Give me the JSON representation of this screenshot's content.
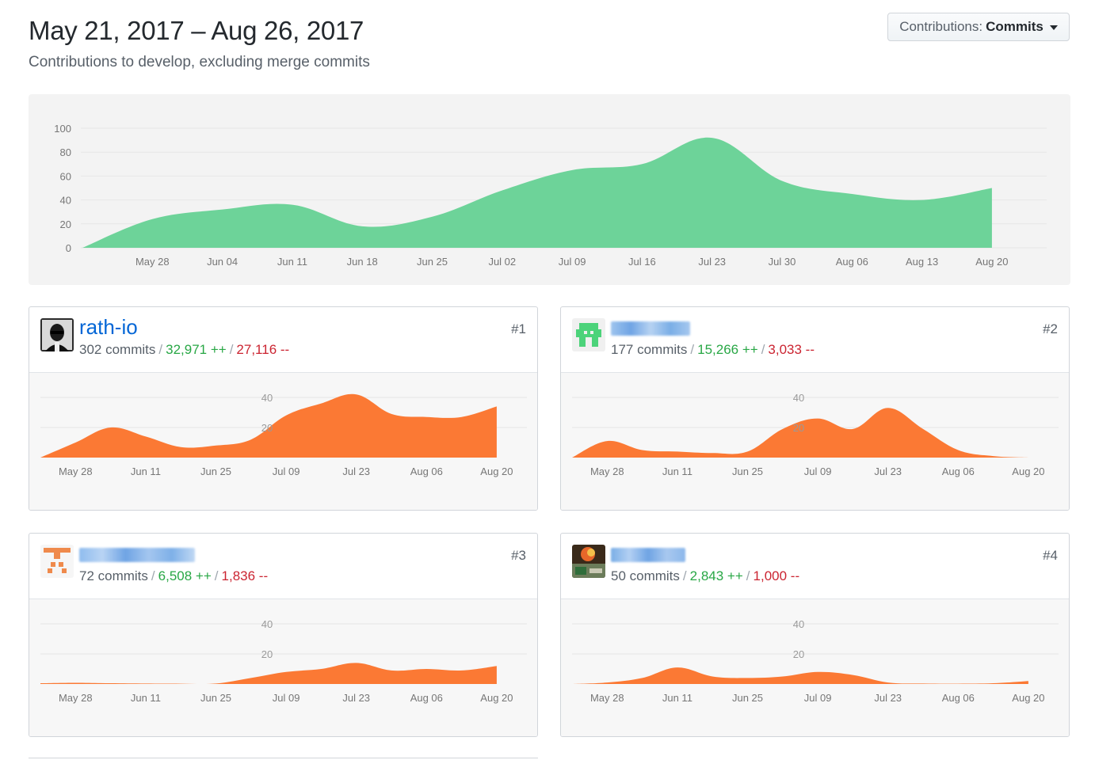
{
  "header": {
    "title": "May 21, 2017 – Aug 26, 2017",
    "subtitle": "Contributions to develop, excluding merge commits"
  },
  "dropdown": {
    "label": "Contributions:",
    "value": "Commits"
  },
  "colors": {
    "main_area": "#6dd399",
    "contributor_area": "#fb7934",
    "link": "#0366d6",
    "additions": "#28a745",
    "deletions": "#cb2431"
  },
  "chart_data": [
    {
      "type": "area",
      "name": "main",
      "yticks": [
        0,
        20,
        40,
        60,
        80,
        100
      ],
      "ylim": [
        0,
        100
      ],
      "x": [
        "May 21",
        "May 28",
        "Jun 04",
        "Jun 11",
        "Jun 18",
        "Jun 25",
        "Jul 02",
        "Jul 09",
        "Jul 16",
        "Jul 23",
        "Jul 30",
        "Aug 06",
        "Aug 13",
        "Aug 20"
      ],
      "xtick_labels": [
        "May 28",
        "Jun 04",
        "Jun 11",
        "Jun 18",
        "Jun 25",
        "Jul 02",
        "Jul 09",
        "Jul 16",
        "Jul 23",
        "Jul 30",
        "Aug 06",
        "Aug 13",
        "Aug 20"
      ],
      "values": [
        0,
        24,
        32,
        36,
        18,
        26,
        48,
        65,
        70,
        92,
        56,
        45,
        40,
        50
      ],
      "grid": true
    }
  ],
  "contributors": [
    {
      "rank": "#1",
      "name": "rath-io",
      "name_visible": true,
      "commits": "302 commits",
      "additions": "32,971 ++",
      "deletions": "27,116 --",
      "chart_data": {
        "type": "area",
        "ylim": [
          0,
          50
        ],
        "yticks": [
          20,
          40
        ],
        "xtick_labels": [
          "May 28",
          "Jun 11",
          "Jun 25",
          "Jul 09",
          "Jul 23",
          "Aug 06",
          "Aug 20"
        ],
        "x": [
          "May 21",
          "May 28",
          "Jun 04",
          "Jun 11",
          "Jun 18",
          "Jun 25",
          "Jul 02",
          "Jul 09",
          "Jul 16",
          "Jul 23",
          "Jul 30",
          "Aug 06",
          "Aug 13",
          "Aug 20"
        ],
        "values": [
          0,
          10,
          20,
          14,
          7,
          8,
          12,
          28,
          36,
          42,
          29,
          27,
          27,
          34
        ]
      }
    },
    {
      "rank": "#2",
      "name": "",
      "name_visible": false,
      "commits": "177 commits",
      "additions": "15,266 ++",
      "deletions": "3,033 --",
      "chart_data": {
        "type": "area",
        "ylim": [
          0,
          50
        ],
        "yticks": [
          20,
          40
        ],
        "xtick_labels": [
          "May 28",
          "Jun 11",
          "Jun 25",
          "Jul 09",
          "Jul 23",
          "Aug 06",
          "Aug 20"
        ],
        "x": [
          "May 21",
          "May 28",
          "Jun 04",
          "Jun 11",
          "Jun 18",
          "Jun 25",
          "Jul 02",
          "Jul 09",
          "Jul 16",
          "Jul 23",
          "Jul 30",
          "Aug 06",
          "Aug 13",
          "Aug 20"
        ],
        "values": [
          0,
          11,
          5,
          4,
          3,
          4,
          19,
          26,
          19,
          33,
          19,
          5,
          1,
          0
        ]
      }
    },
    {
      "rank": "#3",
      "name": "",
      "name_visible": false,
      "commits": "72 commits",
      "additions": "6,508 ++",
      "deletions": "1,836 --",
      "chart_data": {
        "type": "area",
        "ylim": [
          0,
          50
        ],
        "yticks": [
          20,
          40
        ],
        "xtick_labels": [
          "May 28",
          "Jun 11",
          "Jun 25",
          "Jul 09",
          "Jul 23",
          "Aug 06",
          "Aug 20"
        ],
        "x": [
          "May 21",
          "May 28",
          "Jun 04",
          "Jun 11",
          "Jun 18",
          "Jun 25",
          "Jul 02",
          "Jul 09",
          "Jul 16",
          "Jul 23",
          "Jul 30",
          "Aug 06",
          "Aug 13",
          "Aug 20"
        ],
        "values": [
          0.5,
          0.8,
          0.5,
          0.3,
          0.2,
          0.3,
          4,
          8,
          10,
          14,
          9,
          10,
          9,
          12
        ]
      }
    },
    {
      "rank": "#4",
      "name": "",
      "name_visible": false,
      "commits": "50 commits",
      "additions": "2,843 ++",
      "deletions": "1,000 --",
      "chart_data": {
        "type": "area",
        "ylim": [
          0,
          50
        ],
        "yticks": [
          20,
          40
        ],
        "xtick_labels": [
          "May 28",
          "Jun 11",
          "Jun 25",
          "Jul 09",
          "Jul 23",
          "Aug 06",
          "Aug 20"
        ],
        "x": [
          "May 21",
          "May 28",
          "Jun 04",
          "Jun 11",
          "Jun 18",
          "Jun 25",
          "Jul 02",
          "Jul 09",
          "Jul 16",
          "Jul 23",
          "Jul 30",
          "Aug 06",
          "Aug 13",
          "Aug 20"
        ],
        "values": [
          0,
          1,
          4,
          11,
          5,
          4,
          5,
          8,
          6,
          1,
          0.3,
          0.2,
          0.5,
          2
        ]
      }
    }
  ]
}
